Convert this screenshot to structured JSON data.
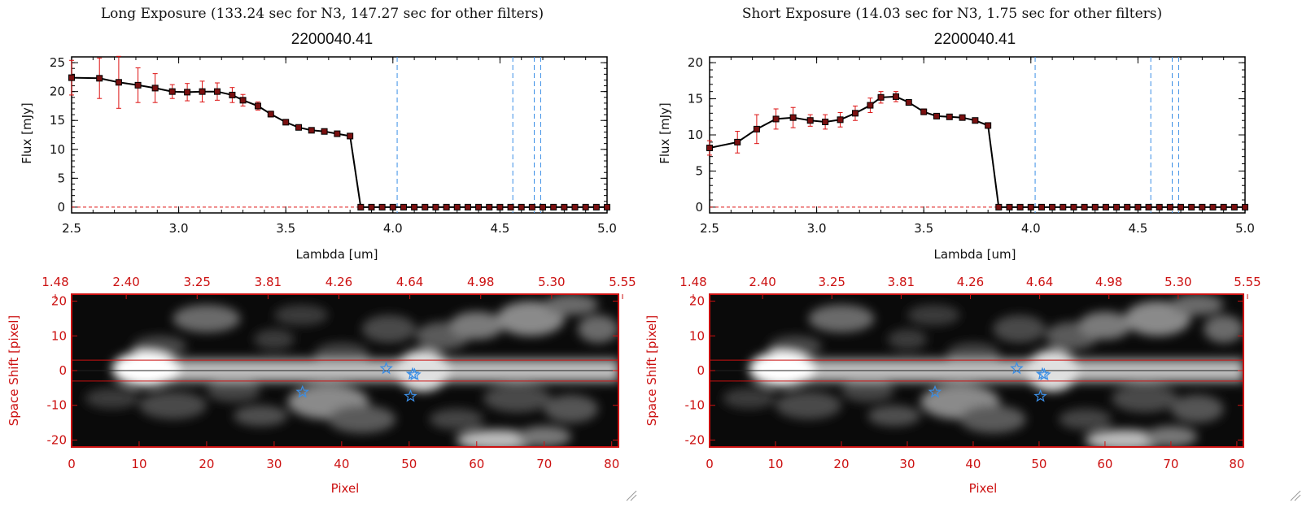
{
  "colors": {
    "data_line": "#000000",
    "error_bar": "#dd1111",
    "marker_fill": "#7a1010",
    "dashed_line": "#3a8ee6",
    "frame_red": "#cc1111",
    "star": "#3a8ee6",
    "zero_dash": "#dd1111"
  },
  "chart_data": [
    {
      "type": "line",
      "panel_title": "Long Exposure (133.24 sec for N3, 147.27 sec for other filters)",
      "title": "2200040.41",
      "xlabel": "Lambda [um]",
      "ylabel": "Flux [mJy]",
      "xlim": [
        2.5,
        5.0
      ],
      "ylim": [
        -1,
        26
      ],
      "xticks": [
        "2.5",
        "3.0",
        "3.5",
        "4.0",
        "4.5",
        "5.0"
      ],
      "yticks": [
        "0",
        "5",
        "10",
        "15",
        "20",
        "25"
      ],
      "vlines": [
        4.02,
        4.56,
        4.66,
        4.69
      ],
      "x": [
        2.5,
        2.63,
        2.72,
        2.81,
        2.89,
        2.97,
        3.04,
        3.11,
        3.18,
        3.25,
        3.3,
        3.37,
        3.43,
        3.5,
        3.56,
        3.62,
        3.68,
        3.74,
        3.8,
        3.85,
        3.9,
        3.95,
        4.0,
        4.05,
        4.1,
        4.15,
        4.2,
        4.25,
        4.3,
        4.35,
        4.4,
        4.45,
        4.5,
        4.55,
        4.6,
        4.65,
        4.7,
        4.75,
        4.8,
        4.85,
        4.9,
        4.95,
        5.0
      ],
      "y": [
        22.4,
        22.3,
        21.6,
        21.1,
        20.6,
        20.0,
        19.9,
        20.0,
        20.0,
        19.4,
        18.5,
        17.5,
        16.1,
        14.7,
        13.8,
        13.3,
        13.1,
        12.7,
        12.3,
        0,
        0,
        0,
        0,
        0,
        0,
        0,
        0,
        0,
        0,
        0,
        0,
        0,
        0,
        0,
        0,
        0,
        0,
        0,
        0,
        0,
        0,
        0,
        0
      ],
      "yerr": [
        3.0,
        3.5,
        4.5,
        3.0,
        2.5,
        1.2,
        1.5,
        1.8,
        1.5,
        1.3,
        1.0,
        0.7,
        0.5,
        0.4,
        0.3,
        0.3,
        0.3,
        0.3,
        0.3,
        0,
        0,
        0,
        0,
        0,
        0,
        0,
        0,
        0,
        0,
        0,
        0,
        0,
        0,
        0,
        0,
        0,
        0,
        0,
        0,
        0,
        0,
        0,
        0
      ],
      "image": {
        "xlabel": "Pixel",
        "ylabel": "Space Shift [pixel]",
        "xlim": [
          0,
          81
        ],
        "ylim": [
          -22,
          22
        ],
        "xticks": [
          "0",
          "10",
          "20",
          "30",
          "40",
          "50",
          "60",
          "70",
          "80"
        ],
        "yticks": [
          "-20",
          "-10",
          "0",
          "10",
          "20"
        ],
        "top_ticks": [
          "1.48",
          "2.40",
          "3.25",
          "3.81",
          "4.26",
          "4.64",
          "4.98",
          "5.30",
          "5.55"
        ],
        "hlines": [
          3,
          -3
        ],
        "stars": [
          [
            34.2,
            -6.2
          ],
          [
            46.6,
            0.6
          ],
          [
            50.5,
            -1.0
          ],
          [
            50.8,
            -1.2
          ],
          [
            50.2,
            -7.4
          ]
        ]
      }
    },
    {
      "type": "line",
      "panel_title": "Short Exposure (14.03 sec for N3, 1.75 sec for other filters)",
      "title": "2200040.41",
      "xlabel": "Lambda [um]",
      "ylabel": "Flux [mJy]",
      "xlim": [
        2.5,
        5.0
      ],
      "ylim": [
        -0.8,
        20.8
      ],
      "xticks": [
        "2.5",
        "3.0",
        "3.5",
        "4.0",
        "4.5",
        "5.0"
      ],
      "yticks": [
        "0",
        "5",
        "10",
        "15",
        "20"
      ],
      "vlines": [
        4.02,
        4.56,
        4.66,
        4.69
      ],
      "x": [
        2.5,
        2.63,
        2.72,
        2.81,
        2.89,
        2.97,
        3.04,
        3.11,
        3.18,
        3.25,
        3.3,
        3.37,
        3.43,
        3.5,
        3.56,
        3.62,
        3.68,
        3.74,
        3.8,
        3.85,
        3.9,
        3.95,
        4.0,
        4.05,
        4.1,
        4.15,
        4.2,
        4.25,
        4.3,
        4.35,
        4.4,
        4.45,
        4.5,
        4.55,
        4.6,
        4.65,
        4.7,
        4.75,
        4.8,
        4.85,
        4.9,
        4.95,
        5.0
      ],
      "y": [
        8.2,
        9.0,
        10.8,
        12.2,
        12.4,
        12.0,
        11.8,
        12.1,
        13.0,
        14.1,
        15.2,
        15.3,
        14.5,
        13.2,
        12.6,
        12.5,
        12.4,
        12.0,
        11.3,
        0,
        0,
        0,
        0,
        0,
        0,
        0,
        0,
        0,
        0,
        0,
        0,
        0,
        0,
        0,
        0,
        0,
        0,
        0,
        0,
        0,
        0,
        0,
        0
      ],
      "yerr": [
        1.0,
        1.5,
        2.0,
        1.4,
        1.4,
        0.8,
        1.0,
        1.0,
        1.0,
        1.0,
        0.8,
        0.7,
        0.4,
        0.4,
        0.3,
        0.3,
        0.3,
        0.3,
        0.3,
        0,
        0,
        0,
        0,
        0,
        0,
        0,
        0,
        0,
        0,
        0,
        0,
        0,
        0,
        0,
        0,
        0,
        0,
        0,
        0,
        0,
        0,
        0,
        0
      ],
      "image": {
        "xlabel": "Pixel",
        "ylabel": "Space Shift [pixel]",
        "xlim": [
          0,
          81
        ],
        "ylim": [
          -22,
          22
        ],
        "xticks": [
          "0",
          "10",
          "20",
          "30",
          "40",
          "50",
          "60",
          "70",
          "80"
        ],
        "yticks": [
          "-20",
          "-10",
          "0",
          "10",
          "20"
        ],
        "top_ticks": [
          "1.48",
          "2.40",
          "3.25",
          "3.81",
          "4.26",
          "4.64",
          "4.98",
          "5.30",
          "5.55"
        ],
        "hlines": [
          3,
          -3
        ],
        "stars": [
          [
            34.2,
            -6.2
          ],
          [
            46.6,
            0.6
          ],
          [
            50.5,
            -1.0
          ],
          [
            50.8,
            -1.2
          ],
          [
            50.2,
            -7.4
          ]
        ]
      }
    }
  ]
}
